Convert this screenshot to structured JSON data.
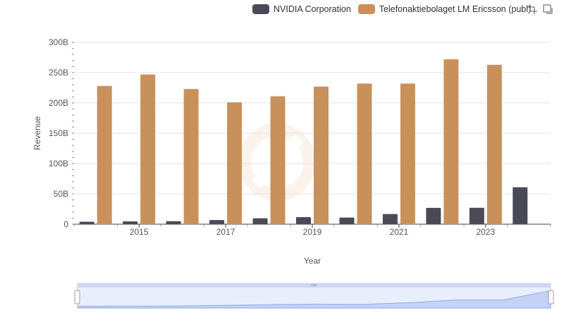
{
  "legend": {
    "items": [
      {
        "label": "NVIDIA Corporation",
        "color": "#4a4a57"
      },
      {
        "label": "Telefonaktiebolaget LM Ericsson (publ)",
        "color": "#c8915c"
      }
    ]
  },
  "toolbar": {
    "icons": [
      "zoom-select-icon",
      "zoom-reset-icon"
    ]
  },
  "chart_data": {
    "type": "bar",
    "xlabel": "Year",
    "ylabel": "Revenue",
    "ylim": [
      0,
      300000000000
    ],
    "yticks": [
      "0",
      "50B",
      "100B",
      "150B",
      "200B",
      "250B",
      "300B"
    ],
    "xticks": [
      "2015",
      "2017",
      "2019",
      "2021",
      "2023"
    ],
    "categories": [
      "2014",
      "2015",
      "2016",
      "2017",
      "2018",
      "2019",
      "2020",
      "2021",
      "2022",
      "2023",
      "2024"
    ],
    "grid": true,
    "legend_position": "top-right",
    "series": [
      {
        "name": "NVIDIA Corporation",
        "color": "#4a4a57",
        "values": [
          4100000000,
          4700000000,
          5000000000,
          6900000000,
          9700000000,
          11700000000,
          10900000000,
          16700000000,
          26900000000,
          27000000000,
          60900000000
        ]
      },
      {
        "name": "Telefonaktiebolaget LM Ericsson (publ)",
        "color": "#c8915c",
        "values": [
          228000000000,
          247000000000,
          223000000000,
          201000000000,
          211000000000,
          227000000000,
          232000000000,
          232000000000,
          272000000000,
          263000000000,
          null
        ]
      }
    ]
  }
}
